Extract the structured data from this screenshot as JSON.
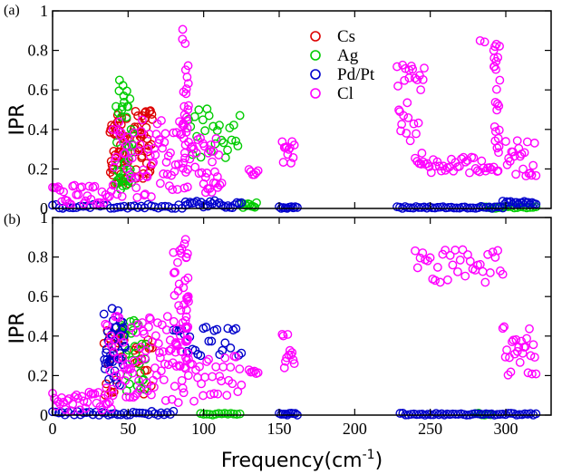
{
  "chart_data": {
    "type": "scatter",
    "xlabel": "Frequency(cm",
    "xlabel_sup": "-1",
    "xlabel_close": ")",
    "xlim": [
      0,
      330
    ],
    "x_ticks": [
      0,
      50,
      100,
      150,
      200,
      250,
      300
    ],
    "legend": [
      {
        "name": "Cs",
        "color": "#dd0000"
      },
      {
        "name": "Ag",
        "color": "#00cc00"
      },
      {
        "name": "Pd/Pt",
        "color": "#0000cc"
      },
      {
        "name": "Cl",
        "color": "#ff00ff"
      }
    ],
    "panels": [
      {
        "tag": "(a)",
        "ylabel": "IPR",
        "ylim": [
          0,
          1
        ],
        "y_ticks": [
          0,
          0.2,
          0.4,
          0.6,
          0.8,
          1
        ],
        "series": [
          {
            "name": "Cs",
            "color": "#dd0000",
            "segments": [
              {
                "x0": 38,
                "x1": 50,
                "lo": 0.1,
                "hi": 0.5,
                "n": 46
              },
              {
                "x0": 54,
                "x1": 66,
                "lo": 0.15,
                "hi": 0.5,
                "n": 40
              }
            ]
          },
          {
            "name": "Ag",
            "color": "#00cc00",
            "segments": [
              {
                "x0": 42,
                "x1": 53,
                "lo": 0.08,
                "hi": 0.65,
                "n": 44
              },
              {
                "x0": 90,
                "x1": 124,
                "lo": 0.25,
                "hi": 0.51,
                "n": 26
              },
              {
                "x0": 125,
                "x1": 135,
                "lo": 0.0,
                "hi": 0.03,
                "n": 10
              },
              {
                "x0": 285,
                "x1": 320,
                "lo": 0.0,
                "hi": 0.01,
                "n": 18
              }
            ]
          },
          {
            "name": "Pd/Pt",
            "color": "#0000cc",
            "segments": [
              {
                "x0": 0,
                "x1": 88,
                "lo": 0.0,
                "hi": 0.02,
                "n": 40
              },
              {
                "x0": 88,
                "x1": 125,
                "lo": 0.0,
                "hi": 0.04,
                "n": 26
              },
              {
                "x0": 150,
                "x1": 162,
                "lo": 0.0,
                "hi": 0.01,
                "n": 10
              },
              {
                "x0": 228,
                "x1": 298,
                "lo": 0.0,
                "hi": 0.01,
                "n": 40
              },
              {
                "x0": 298,
                "x1": 320,
                "lo": 0.02,
                "hi": 0.04,
                "n": 18
              }
            ]
          },
          {
            "name": "Cl",
            "color": "#ff00ff",
            "segments": [
              {
                "x0": 0,
                "x1": 40,
                "lo": 0.02,
                "hi": 0.12,
                "n": 34
              },
              {
                "x0": 40,
                "x1": 86,
                "lo": 0.05,
                "hi": 0.45,
                "n": 70
              },
              {
                "x0": 86,
                "x1": 90,
                "lo": 0.1,
                "hi": 0.96,
                "n": 30
              },
              {
                "x0": 90,
                "x1": 110,
                "lo": 0.15,
                "hi": 0.36,
                "n": 24
              },
              {
                "x0": 100,
                "x1": 112,
                "lo": 0.08,
                "hi": 0.13,
                "n": 10
              },
              {
                "x0": 130,
                "x1": 136,
                "lo": 0.17,
                "hi": 0.2,
                "n": 6
              },
              {
                "x0": 152,
                "x1": 160,
                "lo": 0.22,
                "hi": 0.35,
                "n": 12
              },
              {
                "x0": 228,
                "x1": 236,
                "lo": 0.38,
                "hi": 0.75,
                "n": 14
              },
              {
                "x0": 236,
                "x1": 246,
                "lo": 0.25,
                "hi": 0.74,
                "n": 14
              },
              {
                "x0": 240,
                "x1": 292,
                "lo": 0.18,
                "hi": 0.26,
                "n": 40
              },
              {
                "x0": 283,
                "x1": 286,
                "lo": 0.84,
                "hi": 0.85,
                "n": 2
              },
              {
                "x0": 292,
                "x1": 296,
                "lo": 0.18,
                "hi": 0.84,
                "n": 26
              },
              {
                "x0": 300,
                "x1": 320,
                "lo": 0.15,
                "hi": 0.35,
                "n": 22
              }
            ]
          }
        ]
      },
      {
        "tag": "(b)",
        "ylabel": "IPR",
        "ylim": [
          0,
          1
        ],
        "y_ticks": [
          0,
          0.2,
          0.4,
          0.6,
          0.8,
          1
        ],
        "series": [
          {
            "name": "Cs",
            "color": "#dd0000",
            "segments": [
              {
                "x0": 34,
                "x1": 48,
                "lo": 0.1,
                "hi": 0.45,
                "n": 20
              },
              {
                "x0": 54,
                "x1": 66,
                "lo": 0.1,
                "hi": 0.4,
                "n": 18
              }
            ]
          },
          {
            "name": "Ag",
            "color": "#00cc00",
            "segments": [
              {
                "x0": 45,
                "x1": 62,
                "lo": 0.1,
                "hi": 0.5,
                "n": 30
              },
              {
                "x0": 98,
                "x1": 124,
                "lo": 0.0,
                "hi": 0.01,
                "n": 14
              },
              {
                "x0": 280,
                "x1": 290,
                "lo": 0.0,
                "hi": 0.01,
                "n": 6
              }
            ]
          },
          {
            "name": "Pd/Pt",
            "color": "#0000cc",
            "segments": [
              {
                "x0": 0,
                "x1": 80,
                "lo": 0.0,
                "hi": 0.02,
                "n": 40
              },
              {
                "x0": 34,
                "x1": 48,
                "lo": 0.15,
                "hi": 0.57,
                "n": 40
              },
              {
                "x0": 80,
                "x1": 125,
                "lo": 0.3,
                "hi": 0.45,
                "n": 26
              },
              {
                "x0": 150,
                "x1": 162,
                "lo": 0.0,
                "hi": 0.01,
                "n": 10
              },
              {
                "x0": 230,
                "x1": 320,
                "lo": 0.0,
                "hi": 0.01,
                "n": 50
              }
            ]
          },
          {
            "name": "Cl",
            "color": "#ff00ff",
            "segments": [
              {
                "x0": 0,
                "x1": 40,
                "lo": 0.02,
                "hi": 0.12,
                "n": 34
              },
              {
                "x0": 35,
                "x1": 88,
                "lo": 0.05,
                "hi": 0.5,
                "n": 90
              },
              {
                "x0": 80,
                "x1": 88,
                "lo": 0.3,
                "hi": 0.87,
                "n": 24
              },
              {
                "x0": 88,
                "x1": 90,
                "lo": 0.15,
                "hi": 0.95,
                "n": 24
              },
              {
                "x0": 90,
                "x1": 125,
                "lo": 0.07,
                "hi": 0.3,
                "n": 30
              },
              {
                "x0": 130,
                "x1": 136,
                "lo": 0.21,
                "hi": 0.23,
                "n": 6
              },
              {
                "x0": 152,
                "x1": 160,
                "lo": 0.22,
                "hi": 0.42,
                "n": 12
              },
              {
                "x0": 240,
                "x1": 298,
                "lo": 0.67,
                "hi": 0.84,
                "n": 36
              },
              {
                "x0": 298,
                "x1": 320,
                "lo": 0.2,
                "hi": 0.45,
                "n": 26
              }
            ]
          }
        ]
      }
    ]
  }
}
